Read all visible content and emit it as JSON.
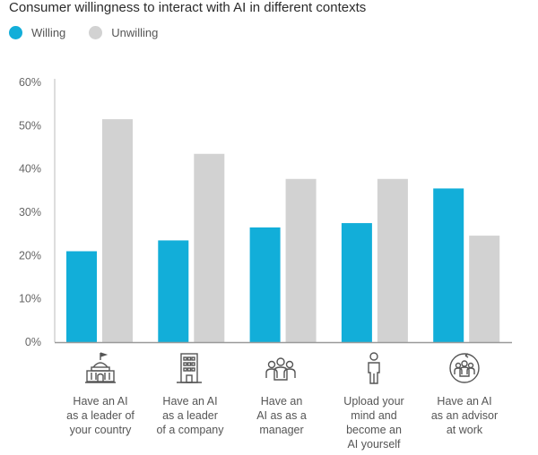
{
  "chart_data": {
    "type": "bar",
    "title": "Consumer willingness to interact with AI in different contexts",
    "categories": [
      "Have an AI\nas a leader of\nyour country",
      "Have an AI\nas a leader\nof a company",
      "Have an\nAI as as a\nmanager",
      "Upload your\nmind and\nbecome an\nAI yourself",
      "Have an AI\nas an advisor\nat work"
    ],
    "series": [
      {
        "name": "Willing",
        "color": "#12aed9",
        "values": [
          21,
          23.5,
          26.5,
          27.5,
          35.5
        ]
      },
      {
        "name": "Unwilling",
        "color": "#d2d2d2",
        "values": [
          51.5,
          43.5,
          37.7,
          37.7,
          24.6
        ]
      }
    ],
    "yticks": [
      "0%",
      "10%",
      "20%",
      "30%",
      "40%",
      "50%",
      "60%"
    ],
    "ylim": [
      0,
      60
    ],
    "xlabel": "",
    "ylabel": "",
    "icons": [
      "capitol-building-icon",
      "office-building-icon",
      "team-group-icon",
      "person-standing-icon",
      "advisor-group-icon"
    ]
  }
}
